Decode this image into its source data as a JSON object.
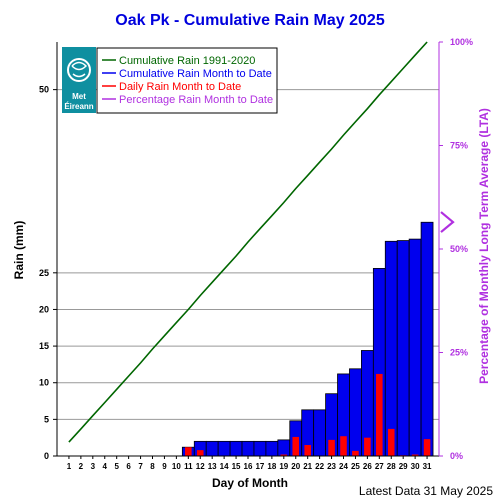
{
  "chart_data": {
    "type": "bar",
    "title": "Oak Pk - Cumulative Rain May   2025",
    "xlabel": "Day of Month",
    "ylabel": "Rain (mm)",
    "y2label": "Percentage  of Monthly Long Term Average (LTA)",
    "footer": "Latest Data 31 May 2025",
    "logo": {
      "line1": "Met",
      "line2": "Éireann"
    },
    "ylim": [
      0,
      56.5
    ],
    "yticks": [
      0,
      5,
      10,
      15,
      20,
      25,
      50
    ],
    "y2ticks": [
      "0%",
      "25%",
      "50%",
      "75%",
      "100%"
    ],
    "y2tick_values": [
      0,
      25,
      50,
      75,
      100
    ],
    "lta_total_mm": 56.5,
    "days": [
      1,
      2,
      3,
      4,
      5,
      6,
      7,
      8,
      9,
      10,
      11,
      12,
      13,
      14,
      15,
      16,
      17,
      18,
      19,
      20,
      21,
      22,
      23,
      24,
      25,
      26,
      27,
      28,
      29,
      30,
      31
    ],
    "grid": true,
    "legend_position": "top-left",
    "colors": {
      "cumulative_lta": "#006600",
      "cumulative_month": "#0000ee",
      "daily": "#ff0000",
      "percentage": "#b030e0"
    },
    "legend": [
      {
        "label": "Cumulative Rain 1991-2020",
        "color": "#006600"
      },
      {
        "label": "Cumulative Rain Month to Date",
        "color": "#0000ee"
      },
      {
        "label": "Daily Rain Month to Date",
        "color": "#ff0000"
      },
      {
        "label": "Percentage Rain Month to Date",
        "color": "#b030e0"
      }
    ],
    "series": [
      {
        "name": "Cumulative Rain 1991-2020",
        "type": "line",
        "values": [
          1.9,
          3.7,
          5.5,
          7.3,
          9.1,
          10.9,
          12.7,
          14.6,
          16.4,
          18.2,
          20.0,
          21.9,
          23.7,
          25.5,
          27.3,
          29.2,
          31.0,
          32.8,
          34.6,
          36.5,
          38.3,
          40.1,
          41.9,
          43.8,
          45.6,
          47.4,
          49.3,
          51.1,
          52.9,
          54.7,
          56.5
        ]
      },
      {
        "name": "Cumulative Rain Month to Date",
        "type": "bar",
        "values": [
          0,
          0,
          0,
          0,
          0,
          0,
          0,
          0,
          0,
          0,
          1.2,
          2.0,
          2.0,
          2.0,
          2.0,
          2.0,
          2.0,
          2.0,
          2.2,
          4.8,
          6.3,
          6.3,
          8.5,
          11.2,
          11.9,
          14.4,
          25.6,
          29.3,
          29.4,
          29.6,
          31.9
        ]
      },
      {
        "name": "Daily Rain Month to Date",
        "type": "bar",
        "values": [
          0,
          0,
          0,
          0,
          0,
          0,
          0,
          0,
          0,
          0,
          1.2,
          0.8,
          0,
          0,
          0,
          0,
          0,
          0,
          0.2,
          2.6,
          1.5,
          0,
          2.2,
          2.7,
          0.7,
          2.5,
          11.2,
          3.7,
          0.1,
          0.2,
          2.3
        ]
      },
      {
        "name": "Percentage Rain Month to Date",
        "type": "marker",
        "values": [
          56.5
        ]
      }
    ]
  }
}
